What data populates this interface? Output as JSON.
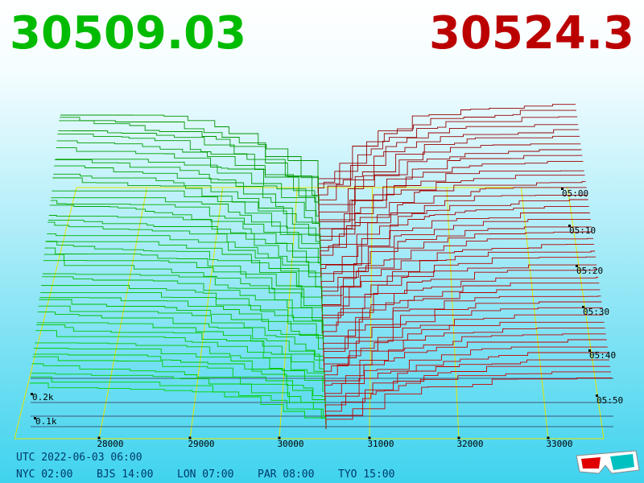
{
  "prices": {
    "bid": 30509.03,
    "ask": 30524.3
  },
  "price_axis": [
    28000,
    29000,
    30000,
    31000,
    32000,
    33000
  ],
  "depth_axis": [
    "0.2k",
    "0.1k"
  ],
  "time_axis": [
    "05:00",
    "05:10",
    "05:20",
    "05:30",
    "05:40",
    "05:50"
  ],
  "clocks": {
    "utc": "UTC 2022-06-03 06:00",
    "zones": [
      "NYC 02:00",
      "BJS 14:00",
      "LON 07:00",
      "PAR 08:00",
      "TYO 15:00"
    ]
  }
}
